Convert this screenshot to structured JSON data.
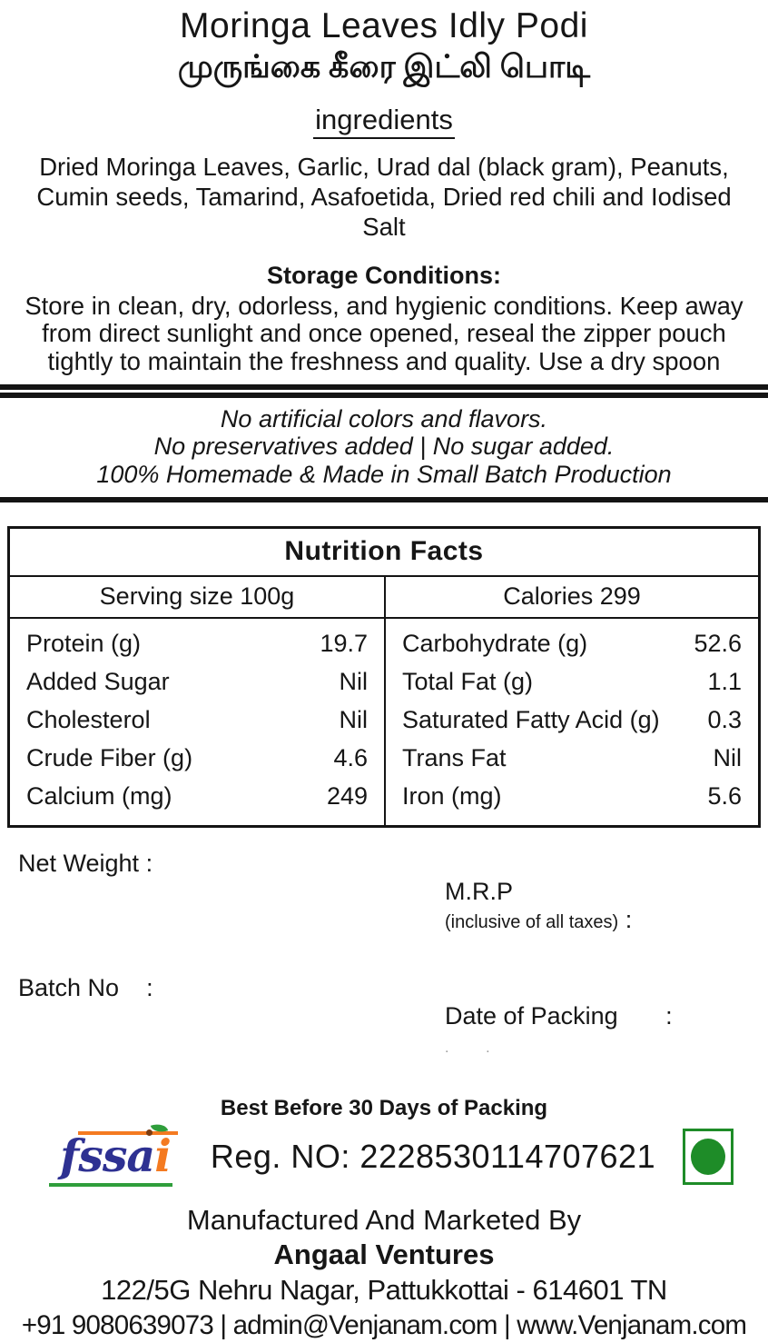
{
  "title": {
    "english": "Moringa Leaves Idly Podi",
    "tamil": "முருங்கை கீரை இட்லி பொடி"
  },
  "ingredients": {
    "heading": "ingredients",
    "text": "Dried Moringa Leaves, Garlic, Urad dal (black gram), Peanuts, Cumin seeds, Tamarind, Asafoetida, Dried red chili and  Iodised Salt"
  },
  "storage": {
    "heading": "Storage Conditions:",
    "text": "Store in clean, dry, odorless, and hygienic conditions. Keep away from direct sunlight and once opened, reseal the zipper pouch tightly to maintain the freshness and quality. Use a dry spoon"
  },
  "claims": {
    "line1": "No artificial colors and flavors.",
    "line2": "No preservatives added | No sugar added.",
    "line3": "100% Homemade & Made in Small Batch Production"
  },
  "nutrition": {
    "title": "Nutrition Facts",
    "serving_size": "Serving size 100g",
    "calories": "Calories 299",
    "rows_left": [
      {
        "label": "Protein (g)",
        "value": "19.7"
      },
      {
        "label": "Added Sugar",
        "value": "Nil"
      },
      {
        "label": "Cholesterol",
        "value": "Nil"
      },
      {
        "label": "Crude Fiber (g)",
        "value": "4.6"
      },
      {
        "label": "Calcium (mg)",
        "value": "249"
      }
    ],
    "rows_right": [
      {
        "label": "Carbohydrate (g)",
        "value": "52.6"
      },
      {
        "label": "Total Fat (g)",
        "value": "1.1"
      },
      {
        "label": "Saturated Fatty Acid (g)",
        "value": "0.3"
      },
      {
        "label": "Trans Fat",
        "value": "Nil"
      },
      {
        "label": "Iron (mg)",
        "value": "5.6"
      }
    ]
  },
  "meta": {
    "net_weight_label": "Net Weight :",
    "batch_no_label": "Batch No    :",
    "mrp_label": "M.R.P",
    "mrp_note": "(inclusive of all taxes)",
    "mrp_colon": " :",
    "date_label": "Date of Packing",
    "date_colon": "       :",
    "date_dots": ".      .",
    "best_before": "Best Before 30 Days of Packing"
  },
  "fssai": {
    "logo_text_blue": "fssa",
    "logo_text_orange": "i",
    "reg_no": "Reg. NO: 2228530114707621"
  },
  "colors": {
    "fssai_indigo": "#2e3192",
    "fssai_orange": "#f47a20",
    "fssai_green": "#2f9e3b",
    "veg_mark_green": "#1e8c28",
    "text_black": "#161616"
  },
  "footer": {
    "line1": "Manufactured And Marketed By",
    "line2": "Angaal Ventures",
    "line3": "122/5G Nehru Nagar, Pattukkottai - 614601 TN",
    "line4": "+91 9080639073 | admin@Venjanam.com | www.Venjanam.com"
  }
}
